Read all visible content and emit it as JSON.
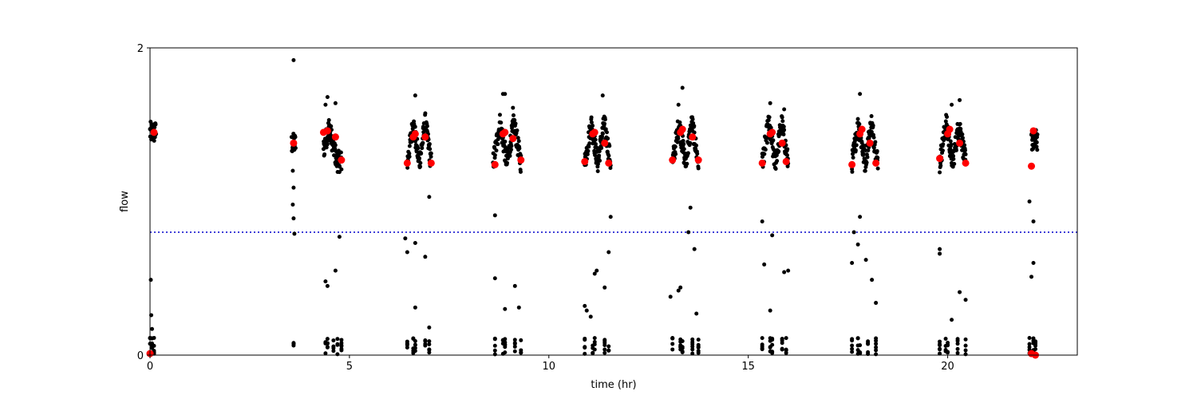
{
  "chart_data": {
    "type": "scatter",
    "title": "",
    "xlabel": "time (hr)",
    "ylabel": "flow",
    "xlim": [
      0,
      23.25
    ],
    "ylim": [
      0,
      2
    ],
    "xticks": [
      0,
      5,
      10,
      15,
      20
    ],
    "xtick_labels": [
      "0",
      "5",
      "10",
      "15",
      "20"
    ],
    "yticks": [
      0,
      2
    ],
    "ytick_labels": [
      "0",
      "2"
    ],
    "grid": false,
    "threshold": {
      "y": 0.8,
      "color": "#0000cc",
      "style": "dotted"
    },
    "series": [
      {
        "marker_color": "#000000",
        "marker": "small-dot",
        "clusters": [
          {
            "start": 0.0,
            "end": 0.15,
            "shape": "flat",
            "low": 1.3,
            "high": 1.6,
            "n": 30
          },
          {
            "start": 3.55,
            "end": 3.65,
            "shape": "flat",
            "low": 1.25,
            "high": 1.5,
            "n": 14
          },
          {
            "start": 4.35,
            "end": 4.8,
            "shape": "hump",
            "low": 1.15,
            "high": 1.52,
            "n": 90
          },
          {
            "start": 6.45,
            "end": 7.05,
            "shape": "double",
            "low": 1.15,
            "high": 1.55,
            "n": 110
          },
          {
            "start": 8.6,
            "end": 9.3,
            "shape": "double",
            "low": 1.15,
            "high": 1.55,
            "n": 110
          },
          {
            "start": 10.9,
            "end": 11.55,
            "shape": "double",
            "low": 1.15,
            "high": 1.55,
            "n": 110
          },
          {
            "start": 13.1,
            "end": 13.75,
            "shape": "double",
            "low": 1.15,
            "high": 1.55,
            "n": 110
          },
          {
            "start": 15.35,
            "end": 16.0,
            "shape": "double",
            "low": 1.15,
            "high": 1.55,
            "n": 110
          },
          {
            "start": 17.6,
            "end": 18.25,
            "shape": "double",
            "low": 1.15,
            "high": 1.55,
            "n": 110
          },
          {
            "start": 19.8,
            "end": 20.45,
            "shape": "double",
            "low": 1.15,
            "high": 1.55,
            "n": 110
          },
          {
            "start": 22.1,
            "end": 22.25,
            "shape": "flat",
            "low": 1.25,
            "high": 1.55,
            "n": 30
          }
        ],
        "baseline_columns": [
          0.0,
          0.05,
          0.1,
          3.6,
          4.4,
          4.45,
          4.6,
          4.7,
          4.8,
          6.45,
          6.6,
          6.65,
          6.9,
          7.0,
          8.65,
          8.85,
          8.9,
          9.15,
          9.3,
          10.9,
          11.1,
          11.15,
          11.4,
          11.5,
          13.1,
          13.3,
          13.35,
          13.6,
          13.75,
          15.35,
          15.55,
          15.6,
          15.85,
          15.95,
          17.6,
          17.75,
          17.8,
          18.0,
          18.2,
          19.8,
          19.95,
          20.0,
          20.25,
          20.45,
          22.05,
          22.15,
          22.2
        ],
        "outliers": [
          [
            0.02,
            0.49
          ],
          [
            0.03,
            0.26
          ],
          [
            0.05,
            0.17
          ],
          [
            0.04,
            0.11
          ],
          [
            3.6,
            1.92
          ],
          [
            3.58,
            1.2
          ],
          [
            3.6,
            1.09
          ],
          [
            3.58,
            0.98
          ],
          [
            3.6,
            0.89
          ],
          [
            3.62,
            0.79
          ],
          [
            4.4,
            0.48
          ],
          [
            4.45,
            0.45
          ],
          [
            4.65,
            0.55
          ],
          [
            4.75,
            0.77
          ],
          [
            4.45,
            1.68
          ],
          [
            4.4,
            1.63
          ],
          [
            4.65,
            1.64
          ],
          [
            6.4,
            0.76
          ],
          [
            6.45,
            0.67
          ],
          [
            6.65,
            0.73
          ],
          [
            6.9,
            0.64
          ],
          [
            7.0,
            1.03
          ],
          [
            6.65,
            0.31
          ],
          [
            7.0,
            0.18
          ],
          [
            6.65,
            1.69
          ],
          [
            8.65,
            0.5
          ],
          [
            8.65,
            0.91
          ],
          [
            8.9,
            0.3
          ],
          [
            9.15,
            0.45
          ],
          [
            9.25,
            0.31
          ],
          [
            8.85,
            1.7
          ],
          [
            8.9,
            1.7
          ],
          [
            9.1,
            1.61
          ],
          [
            10.9,
            0.32
          ],
          [
            10.95,
            0.29
          ],
          [
            11.05,
            0.25
          ],
          [
            11.15,
            0.53
          ],
          [
            11.2,
            0.55
          ],
          [
            11.4,
            0.44
          ],
          [
            11.5,
            0.67
          ],
          [
            11.55,
            0.9
          ],
          [
            11.35,
            1.69
          ],
          [
            13.05,
            0.38
          ],
          [
            13.25,
            0.42
          ],
          [
            13.3,
            0.44
          ],
          [
            13.55,
            0.96
          ],
          [
            13.65,
            0.69
          ],
          [
            13.7,
            0.27
          ],
          [
            13.5,
            0.8
          ],
          [
            13.25,
            1.63
          ],
          [
            13.35,
            1.74
          ],
          [
            15.35,
            0.87
          ],
          [
            15.4,
            0.59
          ],
          [
            15.55,
            0.29
          ],
          [
            15.6,
            0.78
          ],
          [
            15.9,
            0.54
          ],
          [
            16.0,
            0.55
          ],
          [
            15.55,
            1.64
          ],
          [
            15.9,
            1.6
          ],
          [
            17.6,
            0.6
          ],
          [
            17.65,
            0.8
          ],
          [
            17.75,
            0.72
          ],
          [
            17.8,
            0.9
          ],
          [
            17.95,
            0.62
          ],
          [
            18.1,
            0.49
          ],
          [
            18.2,
            0.34
          ],
          [
            17.8,
            1.7
          ],
          [
            19.8,
            0.69
          ],
          [
            19.8,
            0.66
          ],
          [
            20.1,
            0.23
          ],
          [
            20.3,
            0.41
          ],
          [
            20.45,
            0.36
          ],
          [
            20.1,
            1.63
          ],
          [
            20.3,
            1.66
          ],
          [
            22.05,
            1.0
          ],
          [
            22.15,
            0.87
          ],
          [
            22.1,
            0.51
          ],
          [
            22.15,
            0.6
          ]
        ]
      },
      {
        "marker_color": "#ff0000",
        "marker": "large-dot",
        "x": [
          0.1,
          3.6,
          4.35,
          4.45,
          4.65,
          4.8,
          6.45,
          6.6,
          6.65,
          6.9,
          7.05,
          8.65,
          8.85,
          8.9,
          9.1,
          9.3,
          10.9,
          11.1,
          11.15,
          11.4,
          11.5,
          13.1,
          13.3,
          13.35,
          13.6,
          13.75,
          15.35,
          15.55,
          15.6,
          15.85,
          15.95,
          17.6,
          17.8,
          17.85,
          18.05,
          18.2,
          19.8,
          20.0,
          20.05,
          20.3,
          20.45,
          22.1,
          22.15,
          22.1,
          22.2,
          0.0
        ],
        "y": [
          1.45,
          1.38,
          1.45,
          1.46,
          1.42,
          1.27,
          1.25,
          1.42,
          1.44,
          1.42,
          1.25,
          1.24,
          1.44,
          1.45,
          1.41,
          1.27,
          1.26,
          1.44,
          1.45,
          1.38,
          1.25,
          1.27,
          1.45,
          1.47,
          1.42,
          1.27,
          1.25,
          1.44,
          1.45,
          1.38,
          1.26,
          1.24,
          1.44,
          1.47,
          1.38,
          1.25,
          1.28,
          1.44,
          1.47,
          1.38,
          1.25,
          1.23,
          1.46,
          0.01,
          0.0,
          0.01
        ]
      }
    ]
  }
}
